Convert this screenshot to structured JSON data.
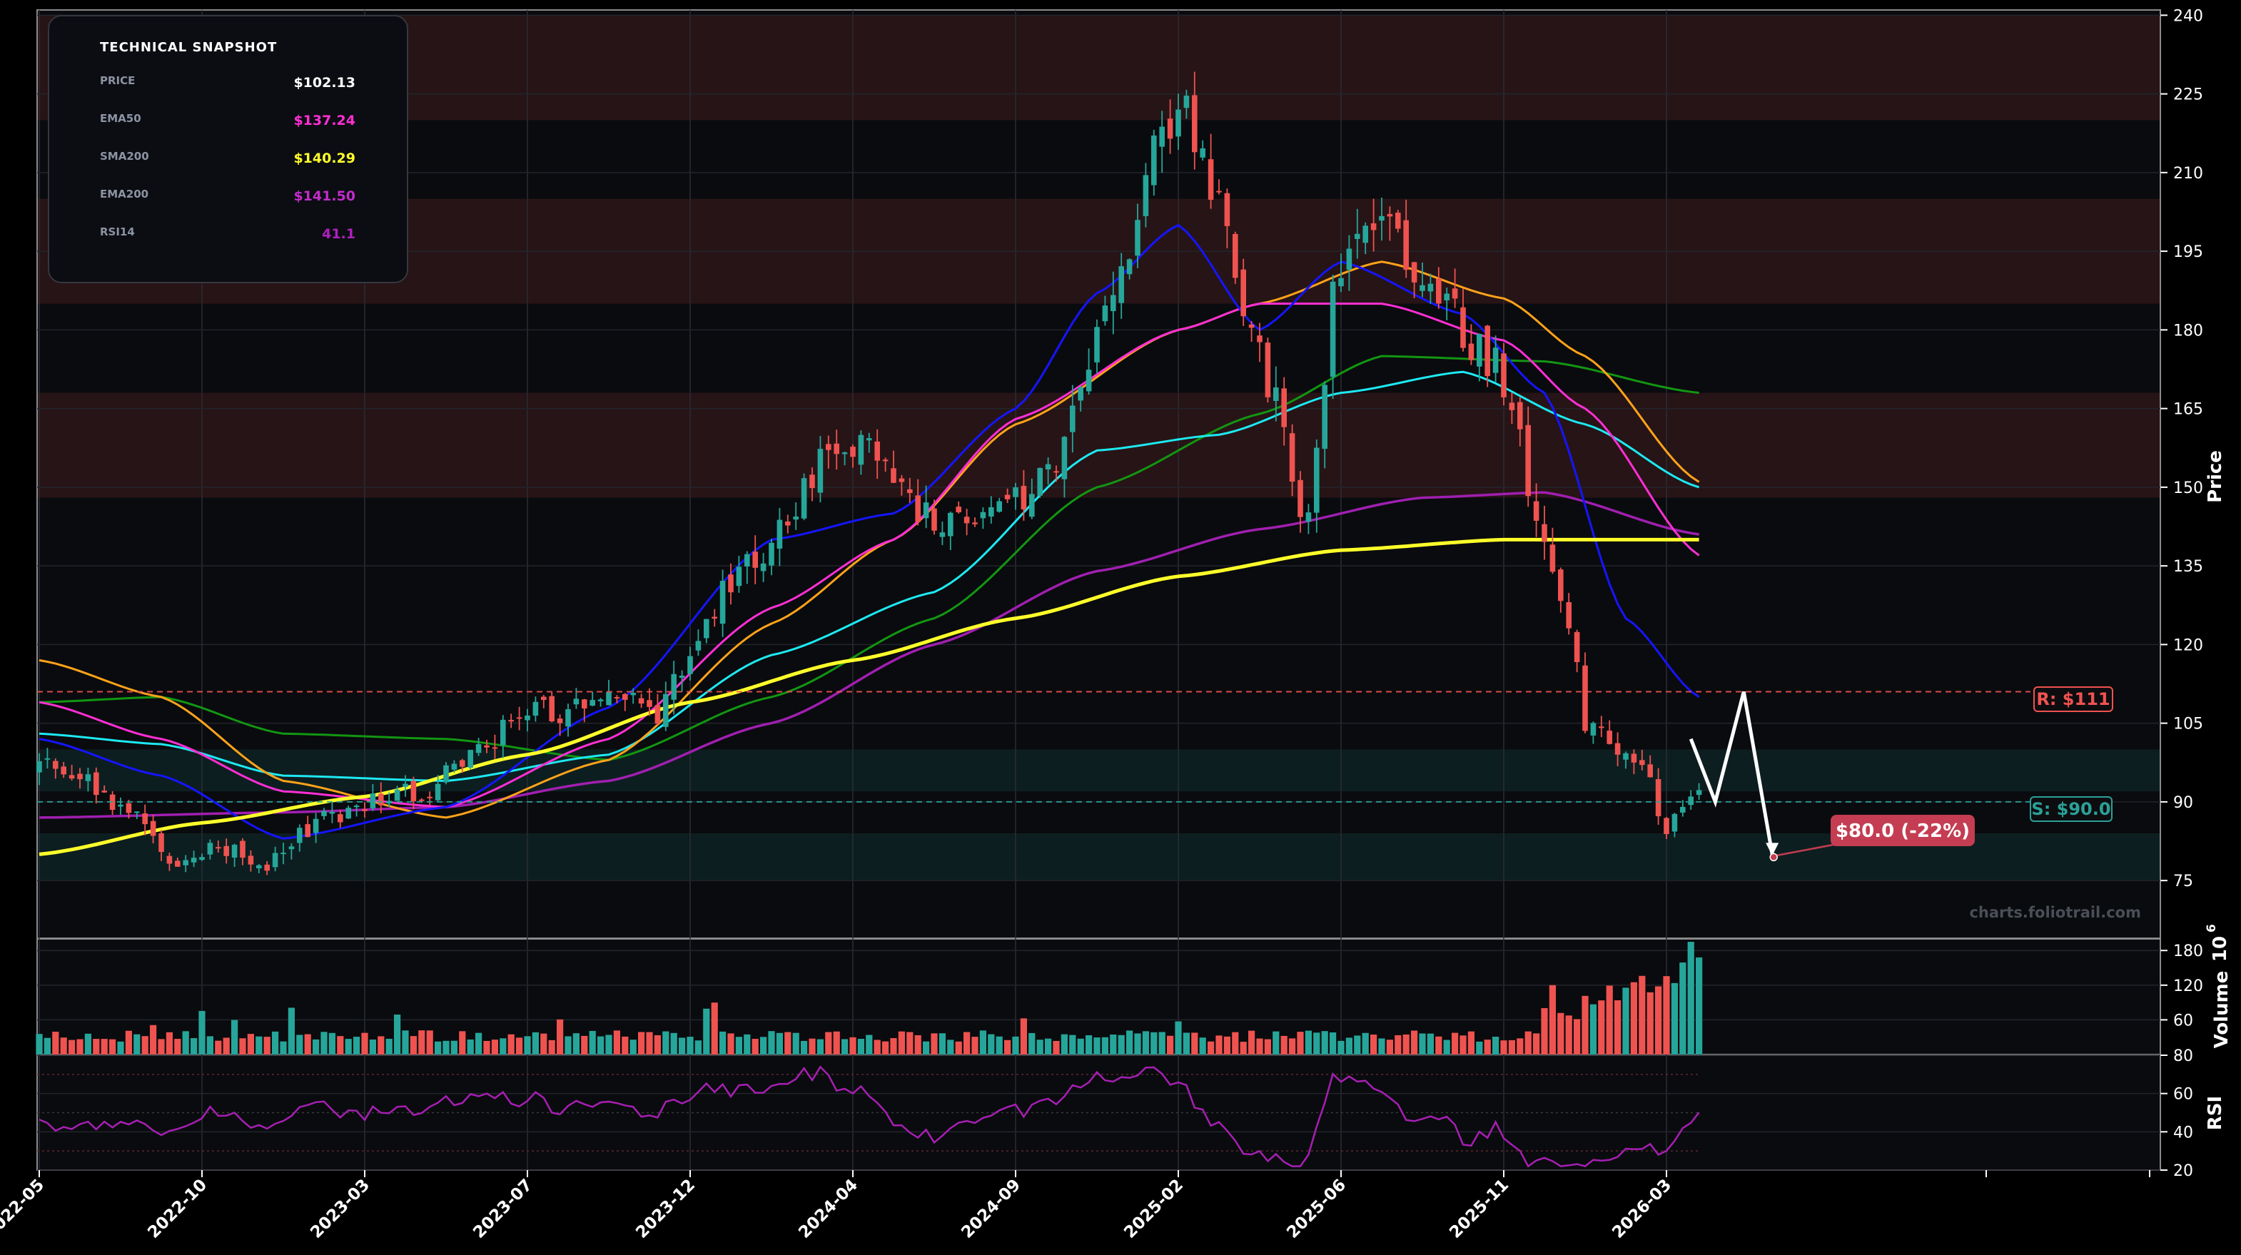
{
  "chart_data": {
    "type": "candlestick",
    "watermark": "charts.foliotrail.com",
    "colors": {
      "up": "#26a69a",
      "down": "#ef5350",
      "ema20": "#1515ff",
      "ema50": "#ff2fd5",
      "ema30": "#ffa31a",
      "ema100": "#1de9f2",
      "ema150": "#129612",
      "ema200": "#a01fb0",
      "sma200": "#ffff2a",
      "rsi": "#a61fb3",
      "resistance": "#ef5350",
      "support": "#2aa198",
      "projection": "#ffffff",
      "target": "#c43d52"
    },
    "snapshot": {
      "title": "TECHNICAL SNAPSHOT",
      "rows": [
        {
          "key": "PRICE",
          "value": "$102.13",
          "color": "#ffffff"
        },
        {
          "key": "EMA50",
          "value": "$137.24",
          "color": "#ff2fd5"
        },
        {
          "key": "SMA200",
          "value": "$140.29",
          "color": "#ffff2a"
        },
        {
          "key": "EMA200",
          "value": "$141.50",
          "color": "#c12ccc"
        },
        {
          "key": "RSI14",
          "value": "41.1",
          "color": "#b020c0"
        }
      ]
    },
    "price_axis": {
      "label": "Price",
      "ylim": [
        64,
        241
      ],
      "ticks": [
        75,
        90,
        105,
        120,
        135,
        150,
        165,
        180,
        195,
        210,
        225,
        240
      ]
    },
    "volume_axis": {
      "label": "Volume",
      "unit": "10^6",
      "ylim": [
        0,
        200
      ],
      "ticks": [
        60,
        120,
        180
      ]
    },
    "rsi_axis": {
      "label": "RSI",
      "ylim": [
        20,
        80
      ],
      "ticks": [
        20,
        40,
        60,
        80
      ]
    },
    "x_axis": {
      "ticks": [
        "2022-05",
        "2022-10",
        "2023-03",
        "2023-07",
        "2023-12",
        "2024-04",
        "2024-09",
        "2025-02",
        "2025-06",
        "2025-11",
        "2026-03"
      ]
    },
    "zones": [
      {
        "from": 220,
        "to": 240,
        "kind": "resistance"
      },
      {
        "from": 185,
        "to": 205,
        "kind": "resistance"
      },
      {
        "from": 148,
        "to": 168,
        "kind": "resistance"
      },
      {
        "from": 92,
        "to": 100,
        "kind": "support"
      },
      {
        "from": 75,
        "to": 84,
        "kind": "support"
      }
    ],
    "levels": [
      {
        "label": "R: $111",
        "value": 111,
        "kind": "resistance"
      },
      {
        "label": "S: $90.0",
        "value": 90,
        "kind": "support"
      }
    ],
    "target": {
      "label": "$80.0 (-22%)",
      "value": 80
    },
    "projection_path": [
      [
        203,
        102
      ],
      [
        206,
        90
      ],
      [
        209.5,
        111
      ],
      [
        213,
        80
      ]
    ],
    "series_anchors": {
      "sma200": [
        [
          0,
          80
        ],
        [
          20,
          86
        ],
        [
          40,
          91
        ],
        [
          60,
          99
        ],
        [
          80,
          109
        ],
        [
          100,
          117
        ],
        [
          120,
          125
        ],
        [
          140,
          133
        ],
        [
          160,
          138
        ],
        [
          180,
          140
        ],
        [
          204,
          140
        ]
      ],
      "ema200": [
        [
          0,
          87
        ],
        [
          30,
          88
        ],
        [
          50,
          89
        ],
        [
          70,
          94
        ],
        [
          90,
          105
        ],
        [
          110,
          120
        ],
        [
          130,
          134
        ],
        [
          150,
          142
        ],
        [
          170,
          148
        ],
        [
          185,
          149
        ],
        [
          204,
          141
        ]
      ],
      "ema150": [
        [
          0,
          109
        ],
        [
          15,
          110
        ],
        [
          30,
          103
        ],
        [
          50,
          102
        ],
        [
          70,
          98
        ],
        [
          90,
          110
        ],
        [
          110,
          125
        ],
        [
          130,
          150
        ],
        [
          150,
          164
        ],
        [
          165,
          175
        ],
        [
          185,
          174
        ],
        [
          204,
          168
        ]
      ],
      "ema100": [
        [
          0,
          103
        ],
        [
          15,
          101
        ],
        [
          30,
          95
        ],
        [
          50,
          94
        ],
        [
          70,
          99
        ],
        [
          90,
          118
        ],
        [
          110,
          130
        ],
        [
          130,
          157
        ],
        [
          145,
          160
        ],
        [
          160,
          168
        ],
        [
          175,
          172
        ],
        [
          190,
          162
        ],
        [
          204,
          150
        ]
      ],
      "ema50": [
        [
          0,
          109
        ],
        [
          15,
          102
        ],
        [
          30,
          92
        ],
        [
          50,
          89
        ],
        [
          70,
          102
        ],
        [
          90,
          127
        ],
        [
          105,
          140
        ],
        [
          120,
          163
        ],
        [
          140,
          180
        ],
        [
          150,
          185
        ],
        [
          165,
          185
        ],
        [
          180,
          178
        ],
        [
          190,
          165
        ],
        [
          204,
          137
        ]
      ],
      "ema30": [
        [
          0,
          117
        ],
        [
          15,
          110
        ],
        [
          30,
          94
        ],
        [
          50,
          87
        ],
        [
          70,
          98
        ],
        [
          90,
          124
        ],
        [
          105,
          140
        ],
        [
          120,
          162
        ],
        [
          140,
          180
        ],
        [
          150,
          185
        ],
        [
          165,
          193
        ],
        [
          180,
          186
        ],
        [
          190,
          175
        ],
        [
          204,
          151
        ]
      ],
      "ema20": [
        [
          0,
          102
        ],
        [
          15,
          95
        ],
        [
          30,
          83
        ],
        [
          50,
          89
        ],
        [
          70,
          108
        ],
        [
          90,
          140
        ],
        [
          105,
          145
        ],
        [
          120,
          165
        ],
        [
          130,
          187
        ],
        [
          140,
          200
        ],
        [
          150,
          180
        ],
        [
          160,
          193
        ],
        [
          175,
          183
        ],
        [
          185,
          168
        ],
        [
          195,
          125
        ],
        [
          204,
          110
        ]
      ]
    }
  }
}
